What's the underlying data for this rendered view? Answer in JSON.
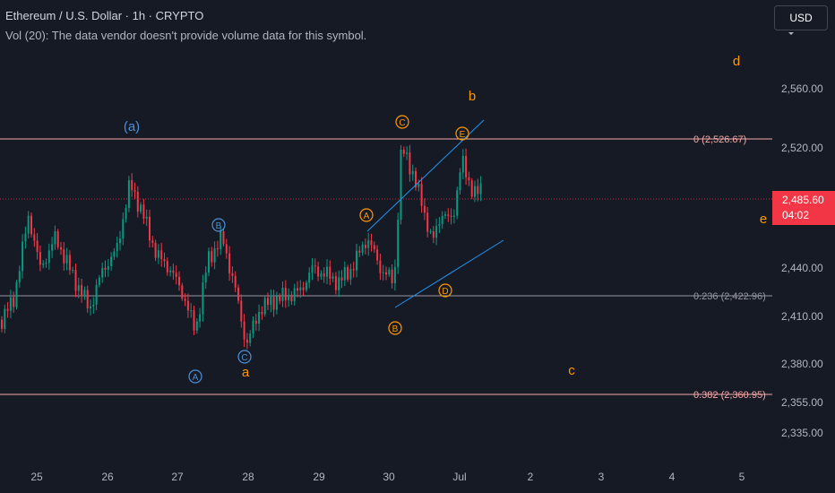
{
  "header": {
    "title": "Ethereum / U.S. Dollar · 1h · CRYPTO",
    "volume_note": "Vol (20): The data vendor doesn't provide volume data for this symbol."
  },
  "currency_button": {
    "label": "USD"
  },
  "last_price": {
    "value": "2,485.60",
    "countdown": "04:02",
    "color": "#f23645"
  },
  "price_axis": {
    "ticks": [
      "2,560.00",
      "2,520.00",
      "2,440.00",
      "2,410.00",
      "2,380.00",
      "2,355.00",
      "2,335.00"
    ]
  },
  "time_axis": {
    "ticks": [
      "25",
      "26",
      "27",
      "28",
      "29",
      "30",
      "Jul",
      "2",
      "3",
      "4",
      "5"
    ]
  },
  "fib_levels": [
    {
      "label": "0 (2,526.67)",
      "color": "#f7a9a8"
    },
    {
      "label": "0.236 (2,422.96)",
      "color": "#9598a1"
    },
    {
      "label": "0.382 (2,360.95)",
      "color": "#f7a9a8"
    }
  ],
  "wave_labels": {
    "orange": [
      "a",
      "b",
      "c",
      "d",
      "e"
    ],
    "orange_circled": [
      "A",
      "B",
      "C",
      "D",
      "E"
    ],
    "blue": [
      "(a)"
    ],
    "blue_circled": [
      "A",
      "B",
      "C"
    ]
  },
  "colors": {
    "background": "#161a25",
    "up_candle": "#089981",
    "down_candle": "#f23645",
    "wave_orange": "#ff9800",
    "wave_blue": "#4a90d9",
    "trendline": "#2196f3"
  }
}
